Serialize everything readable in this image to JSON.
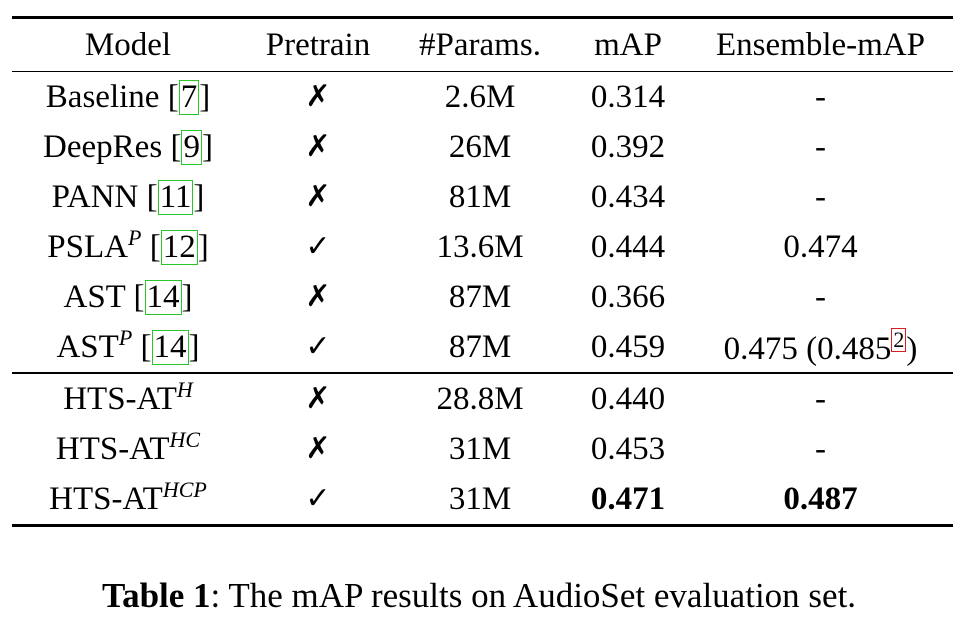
{
  "table": {
    "headers": [
      "Model",
      "Pretrain",
      "#Params.",
      "mAP",
      "Ensemble-mAP"
    ],
    "group1": [
      {
        "model": "Baseline",
        "sup": "",
        "cite": "7",
        "pretrain": "✗",
        "params": "2.6M",
        "map": "0.314",
        "ens": "-"
      },
      {
        "model": "DeepRes",
        "sup": "",
        "cite": "9",
        "pretrain": "✗",
        "params": "26M",
        "map": "0.392",
        "ens": "-"
      },
      {
        "model": "PANN",
        "sup": "",
        "cite": "11",
        "pretrain": "✗",
        "params": "81M",
        "map": "0.434",
        "ens": "-"
      },
      {
        "model": "PSLA",
        "sup": "P",
        "cite": "12",
        "pretrain": "✓",
        "params": "13.6M",
        "map": "0.444",
        "ens": "0.474"
      },
      {
        "model": "AST",
        "sup": "",
        "cite": "14",
        "pretrain": "✗",
        "params": "87M",
        "map": "0.366",
        "ens": "-"
      },
      {
        "model": "AST",
        "sup": "P",
        "cite": "14",
        "pretrain": "✓",
        "params": "87M",
        "map": "0.459",
        "ens_prefix": "0.475 (0.485",
        "ens_footnote": "2",
        "ens_suffix": ")"
      }
    ],
    "group2": [
      {
        "model": "HTS-AT",
        "sup": "H",
        "pretrain": "✗",
        "params": "28.8M",
        "map": "0.440",
        "ens": "-"
      },
      {
        "model": "HTS-AT",
        "sup": "HC",
        "pretrain": "✗",
        "params": "31M",
        "map": "0.453",
        "ens": "-"
      },
      {
        "model": "HTS-AT",
        "sup": "HCP",
        "pretrain": "✓",
        "params": "31M",
        "map": "0.471",
        "ens": "0.487"
      }
    ]
  },
  "caption": {
    "label": "Table 1",
    "text": ": The mAP results on AudioSet evaluation set."
  }
}
